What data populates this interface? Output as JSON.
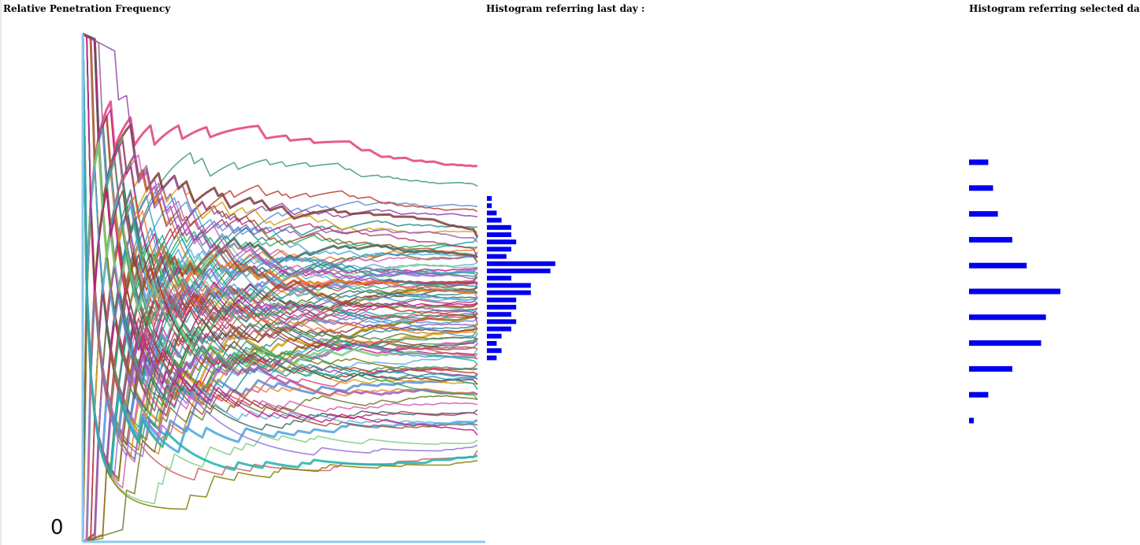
{
  "headings": {
    "main": "Relative Penetration Frequency",
    "last_day": "Histogram referring last day :",
    "selected_day": "Histogram referring selected day :"
  },
  "axis": {
    "y_zero_label": "0"
  },
  "chart_data": [
    {
      "type": "line",
      "title": "Relative Penetration Frequency",
      "xlabel": "",
      "ylabel": "",
      "ylim": [
        0,
        1
      ],
      "x": [
        1,
        2,
        3,
        4,
        5,
        6,
        7,
        8,
        9,
        10,
        11,
        12,
        13,
        14,
        15,
        16,
        17,
        18,
        19,
        20,
        21,
        22,
        23,
        24,
        25,
        26,
        27,
        28,
        29,
        30,
        31,
        32,
        33,
        34,
        35,
        36,
        37,
        38,
        39,
        40,
        41,
        42,
        43,
        44,
        45,
        46,
        47,
        48,
        49,
        50,
        51,
        52,
        53,
        54,
        55,
        56,
        57,
        58,
        59,
        60,
        61,
        62,
        63,
        64,
        65,
        66,
        67,
        68,
        69,
        70,
        71,
        72,
        73,
        74,
        75,
        76,
        77,
        78,
        79,
        80,
        81,
        82,
        83,
        84,
        85,
        86,
        87,
        88,
        89,
        90,
        91,
        92,
        93,
        94,
        95,
        96,
        97,
        98,
        99,
        100
      ],
      "series_count": 100,
      "final_values": [
        0.74,
        0.7,
        0.66,
        0.65,
        0.64,
        0.62,
        0.61,
        0.6,
        0.6,
        0.59,
        0.58,
        0.58,
        0.57,
        0.57,
        0.56,
        0.56,
        0.55,
        0.55,
        0.55,
        0.54,
        0.54,
        0.54,
        0.53,
        0.53,
        0.53,
        0.52,
        0.52,
        0.52,
        0.51,
        0.51,
        0.51,
        0.5,
        0.5,
        0.5,
        0.5,
        0.49,
        0.49,
        0.49,
        0.48,
        0.48,
        0.48,
        0.48,
        0.47,
        0.47,
        0.47,
        0.46,
        0.46,
        0.46,
        0.45,
        0.45,
        0.45,
        0.44,
        0.44,
        0.44,
        0.43,
        0.43,
        0.43,
        0.42,
        0.42,
        0.42,
        0.41,
        0.41,
        0.4,
        0.4,
        0.4,
        0.39,
        0.39,
        0.38,
        0.38,
        0.37,
        0.37,
        0.36,
        0.36,
        0.35,
        0.35,
        0.34,
        0.34,
        0.33,
        0.33,
        0.32,
        0.32,
        0.31,
        0.31,
        0.3,
        0.29,
        0.29,
        0.28,
        0.28,
        0.27,
        0.26,
        0.25,
        0.24,
        0.23,
        0.22,
        0.21,
        0.2,
        0.19,
        0.18,
        0.17,
        0.16
      ],
      "grid": false,
      "legend": "none"
    },
    {
      "type": "bar",
      "orientation": "horizontal",
      "title": "Histogram referring last day :",
      "bar_color": "#0000ee",
      "bin_centers": [
        0.68,
        0.66,
        0.64,
        0.62,
        0.6,
        0.58,
        0.56,
        0.55,
        0.54,
        0.52,
        0.5,
        0.48,
        0.46,
        0.44,
        0.42,
        0.4,
        0.38,
        0.36,
        0.34,
        0.32,
        0.3,
        0.28,
        0.26,
        0.24,
        0.22,
        0.2,
        0.18
      ],
      "values": [
        1,
        1,
        2,
        3,
        5,
        5,
        6,
        5,
        4,
        14,
        13,
        5,
        9,
        9,
        6,
        6,
        5,
        6,
        5,
        3,
        2,
        3,
        2,
        0,
        0,
        0,
        0
      ]
    },
    {
      "type": "bar",
      "orientation": "horizontal",
      "title": "Histogram referring selected day :",
      "bar_color": "#0000ee",
      "bin_centers": [
        0.75,
        0.7,
        0.65,
        0.6,
        0.55,
        0.5,
        0.45,
        0.4,
        0.35,
        0.3,
        0.25
      ],
      "values": [
        4,
        5,
        6,
        9,
        12,
        19,
        16,
        15,
        9,
        4,
        1
      ]
    }
  ]
}
